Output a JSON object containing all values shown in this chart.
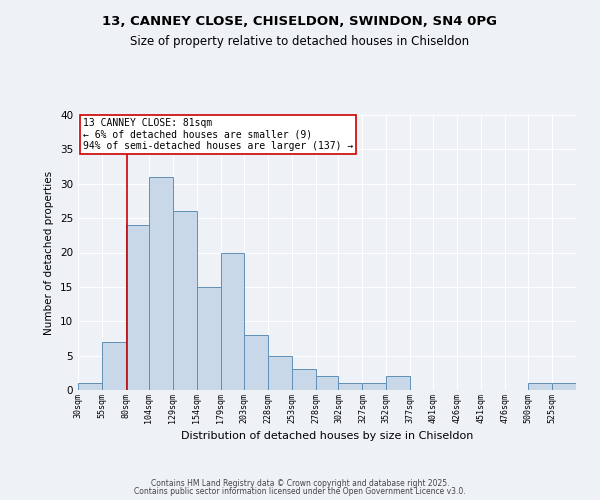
{
  "title_line1": "13, CANNEY CLOSE, CHISELDON, SWINDON, SN4 0PG",
  "title_line2": "Size of property relative to detached houses in Chiseldon",
  "xlabel": "Distribution of detached houses by size in Chiseldon",
  "ylabel": "Number of detached properties",
  "bin_labels": [
    "30sqm",
    "55sqm",
    "80sqm",
    "104sqm",
    "129sqm",
    "154sqm",
    "179sqm",
    "203sqm",
    "228sqm",
    "253sqm",
    "278sqm",
    "302sqm",
    "327sqm",
    "352sqm",
    "377sqm",
    "401sqm",
    "426sqm",
    "451sqm",
    "476sqm",
    "500sqm",
    "525sqm"
  ],
  "bin_left_edges": [
    30,
    55,
    80,
    104,
    129,
    154,
    179,
    203,
    228,
    253,
    278,
    302,
    327,
    352,
    377,
    401,
    426,
    451,
    476,
    500,
    525
  ],
  "bin_widths": [
    25,
    25,
    24,
    25,
    25,
    25,
    24,
    25,
    25,
    25,
    24,
    25,
    25,
    25,
    24,
    25,
    25,
    25,
    24,
    25,
    25
  ],
  "bar_heights": [
    1,
    7,
    24,
    31,
    26,
    15,
    20,
    8,
    5,
    3,
    2,
    1,
    1,
    2,
    0,
    0,
    0,
    0,
    0,
    1,
    1
  ],
  "bar_color": "#c8d8e8",
  "bar_edge_color": "#6090b8",
  "vline_x": 81,
  "vline_color": "#cc0000",
  "annotation_title": "13 CANNEY CLOSE: 81sqm",
  "annotation_line2": "← 6% of detached houses are smaller (9)",
  "annotation_line3": "94% of semi-detached houses are larger (137) →",
  "annotation_box_color": "#ffffff",
  "annotation_box_edge_color": "#cc0000",
  "ylim": [
    0,
    40
  ],
  "yticks": [
    0,
    5,
    10,
    15,
    20,
    25,
    30,
    35,
    40
  ],
  "footer_line1": "Contains HM Land Registry data © Crown copyright and database right 2025.",
  "footer_line2": "Contains public sector information licensed under the Open Government Licence v3.0.",
  "background_color": "#eef2f7",
  "grid_color": "#ffffff",
  "title_fontsize": 9.5,
  "subtitle_fontsize": 8.5
}
